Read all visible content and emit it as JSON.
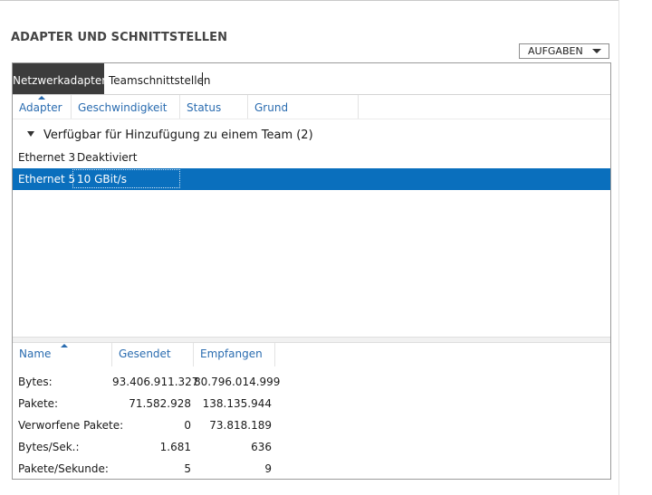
{
  "section": {
    "title": "ADAPTER UND SCHNITTSTELLEN",
    "tasks_label": "AUFGABEN"
  },
  "tabs": [
    {
      "label": "Netzwerkadapter",
      "active": true
    },
    {
      "label": "Teamschnittstellen",
      "active": false
    }
  ],
  "adapter_columns": [
    "Adapter",
    "Geschwindigkeit",
    "Status",
    "Grund"
  ],
  "group": {
    "label": "Verfügbar für Hinzufügung zu einem Team (2)"
  },
  "adapters": [
    {
      "adapter": "Ethernet 3",
      "speed": "Deaktiviert",
      "selected": false
    },
    {
      "adapter": "Ethernet 5",
      "speed": "10 GBit/s",
      "selected": true
    }
  ],
  "stats_columns": [
    "Name",
    "Gesendet",
    "Empfangen"
  ],
  "stats": [
    {
      "name": "Bytes:",
      "sent": "93.406.911.327",
      "received": "80.796.014.999"
    },
    {
      "name": "Pakete:",
      "sent": "71.582.928",
      "received": "138.135.944"
    },
    {
      "name": "Verworfene Pakete:",
      "sent": "0",
      "received": "73.818.189"
    },
    {
      "name": "Bytes/Sek.:",
      "sent": "1.681",
      "received": "636"
    },
    {
      "name": "Pakete/Sekunde:",
      "sent": "5",
      "received": "9"
    }
  ],
  "colors": {
    "accent": "#0a6fbd",
    "header_text": "#2a6cb0",
    "active_tab": "#3c3c3c"
  }
}
